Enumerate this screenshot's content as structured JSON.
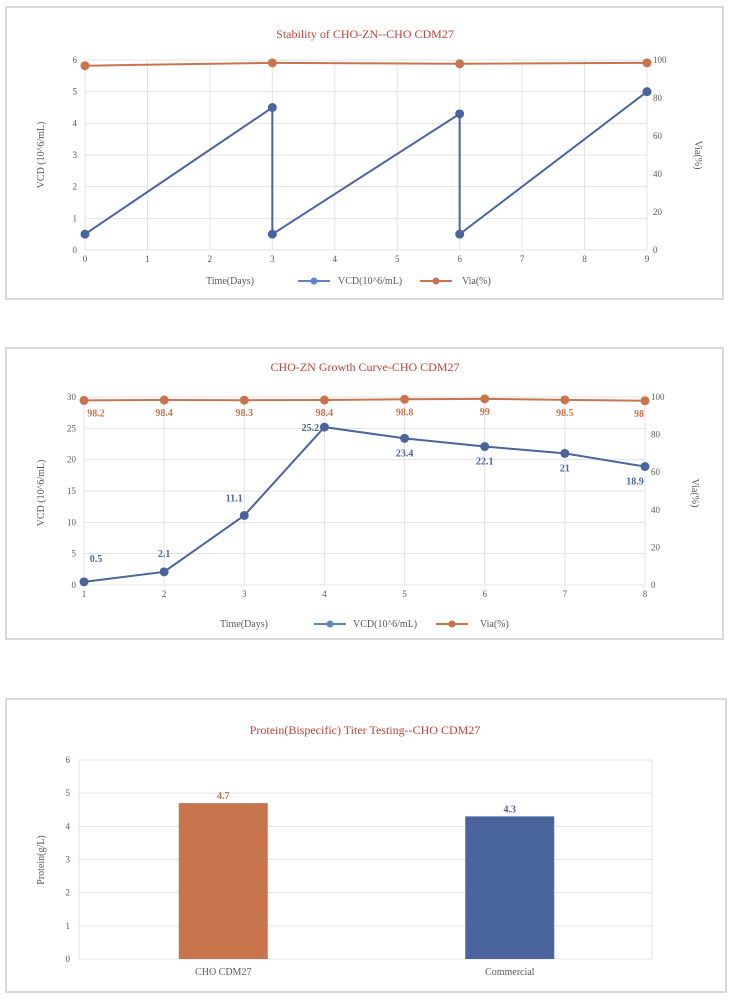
{
  "colors": {
    "vcd": "#4A659E",
    "vcd_legend": "#5B86C0",
    "via": "#C8754E",
    "title": "#C0413A",
    "bar_cho": "#C8754E",
    "bar_commercial": "#4A659E"
  },
  "chart_data": [
    {
      "type": "line",
      "title": "Stability of CHO-ZN--CHO CDM27",
      "xlabel": "Time(Days)",
      "ylabel": "VCD (10^6/mL)",
      "y2label": "Via(%)",
      "xlim": [
        0,
        9
      ],
      "ylim": [
        0,
        6
      ],
      "y2lim": [
        0,
        100
      ],
      "xticks": [
        "0",
        "1",
        "2",
        "3",
        "4",
        "5",
        "6",
        "7",
        "8",
        "9"
      ],
      "yticks": [
        "0",
        "1",
        "2",
        "3",
        "4",
        "5",
        "6"
      ],
      "y2ticks": [
        "0",
        "20",
        "40",
        "60",
        "80",
        "100"
      ],
      "grid": true,
      "legend": [
        "VCD(10^6/mL)",
        "Via(%)"
      ],
      "legend_position": "bottom",
      "series": [
        {
          "name": "VCD(10^6/mL)",
          "axis": "left",
          "x": [
            0,
            3,
            3,
            6,
            6,
            9
          ],
          "values": [
            0.5,
            4.5,
            0.5,
            4.3,
            0.5,
            5.0
          ]
        },
        {
          "name": "Via(%)",
          "axis": "right",
          "x": [
            0,
            3,
            6,
            9
          ],
          "values": [
            97,
            98.5,
            98,
            98.5
          ]
        }
      ]
    },
    {
      "type": "line",
      "title": "CHO-ZN Growth Curve-CHO CDM27",
      "xlabel": "Time(Days)",
      "ylabel": "VCD (10^6/mL)",
      "y2label": "Via(%)",
      "xlim": [
        1,
        8
      ],
      "ylim": [
        0,
        30
      ],
      "y2lim": [
        0,
        100
      ],
      "xticks": [
        "1",
        "2",
        "3",
        "4",
        "5",
        "6",
        "7",
        "8"
      ],
      "yticks": [
        "0",
        "5",
        "10",
        "15",
        "20",
        "25",
        "30"
      ],
      "y2ticks": [
        "0",
        "20",
        "40",
        "60",
        "80",
        "100"
      ],
      "grid": true,
      "legend": [
        "VCD(10^6/mL)",
        "Via(%)"
      ],
      "legend_position": "bottom",
      "series": [
        {
          "name": "VCD(10^6/mL)",
          "axis": "left",
          "x": [
            1,
            2,
            3,
            4,
            5,
            6,
            7,
            8
          ],
          "values": [
            0.5,
            2.1,
            11.1,
            25.2,
            23.4,
            22.1,
            21,
            18.9
          ],
          "labels": [
            "0.5",
            "2.1",
            "11.1",
            "25.2",
            "23.4",
            "22.1",
            "21",
            "18.9"
          ]
        },
        {
          "name": "Via(%)",
          "axis": "right",
          "x": [
            1,
            2,
            3,
            4,
            5,
            6,
            7,
            8
          ],
          "values": [
            98.2,
            98.4,
            98.3,
            98.4,
            98.8,
            99,
            98.5,
            98
          ],
          "labels": [
            "98.2",
            "98.4",
            "98.3",
            "98.4",
            "98.8",
            "99",
            "98.5",
            "98"
          ]
        }
      ]
    },
    {
      "type": "bar",
      "title": "Protein(Bispecific) Titer Testing--CHO CDM27",
      "xlabel": "",
      "ylabel": "Protein(g/L)",
      "ylim": [
        0,
        6
      ],
      "yticks": [
        "0",
        "1",
        "2",
        "3",
        "4",
        "5",
        "6"
      ],
      "grid": true,
      "categories": [
        "CHO CDM27",
        "Commercial"
      ],
      "values": [
        4.7,
        4.3
      ],
      "labels": [
        "4.7",
        "4.3"
      ]
    }
  ]
}
